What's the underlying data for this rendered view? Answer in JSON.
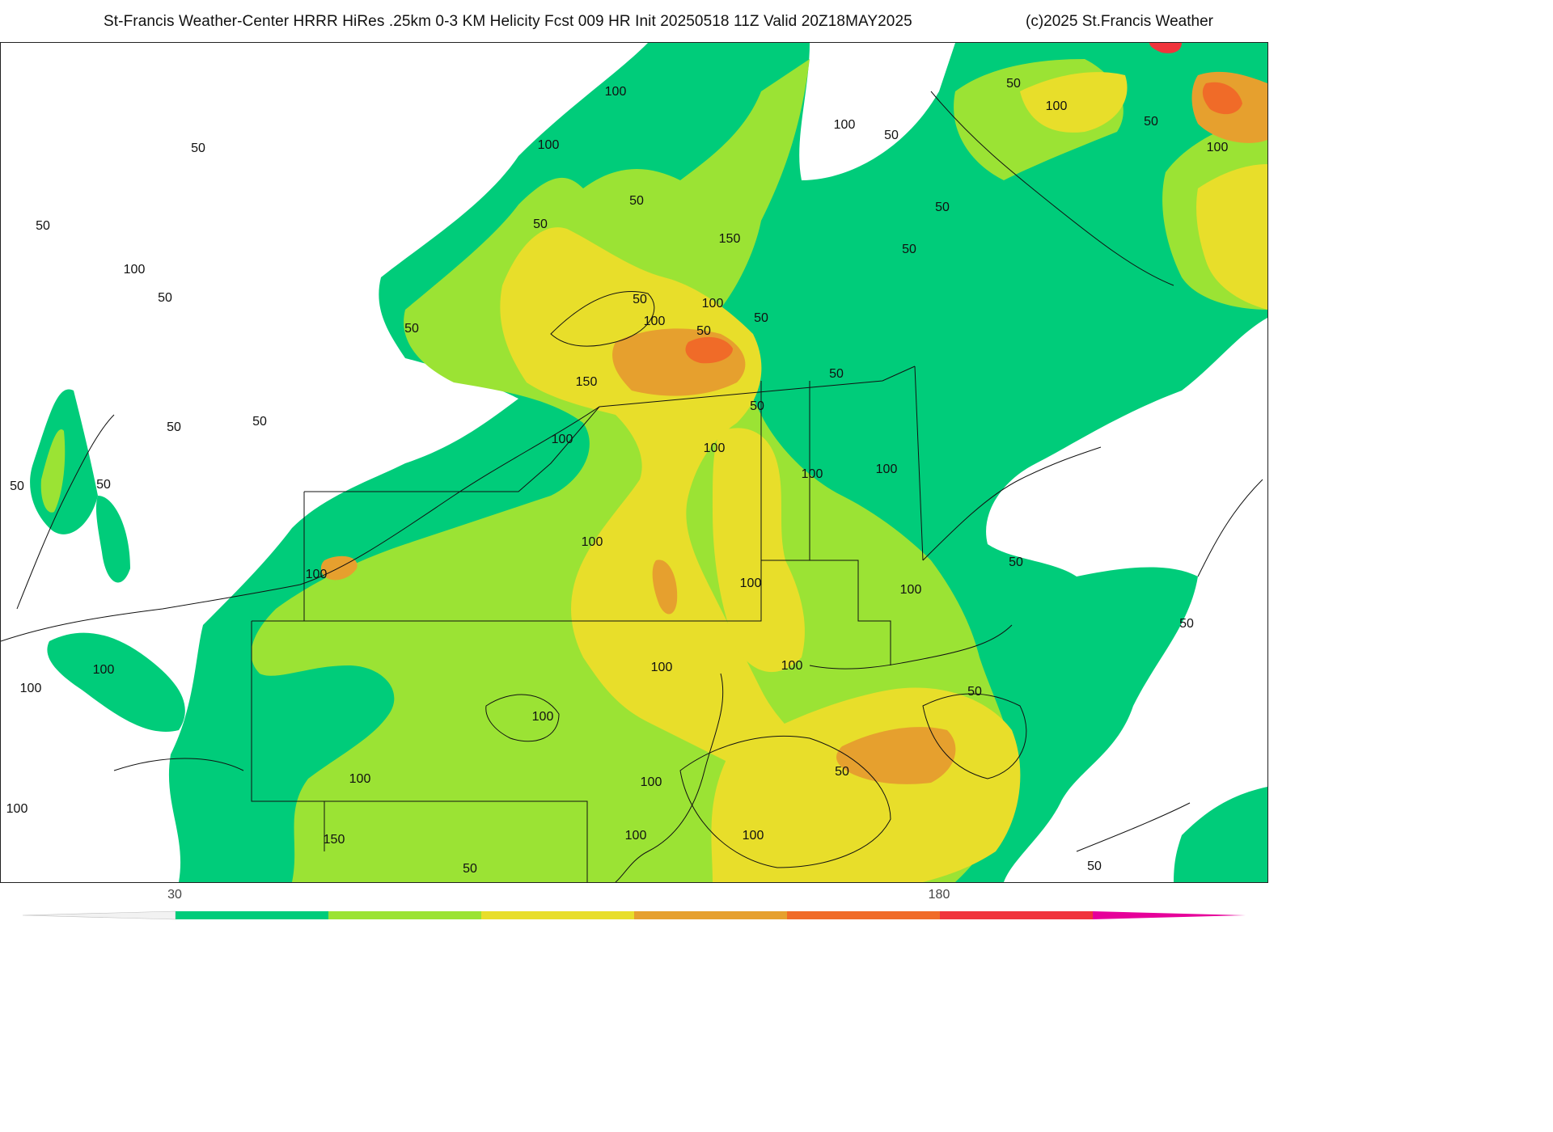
{
  "header": {
    "title": "St-Francis Weather-Center HRRR HiRes .25km 0-3 KM Helicity Fcst 009 HR Init 20250518 11Z  Valid 20Z18MAY2025",
    "copyright": "(c)2025 St.Francis Weather"
  },
  "map": {
    "field": "0-3 KM Helicity",
    "contour_labels": [
      {
        "text": "50"
      },
      {
        "text": "50"
      },
      {
        "text": "100"
      },
      {
        "text": "50"
      },
      {
        "text": "50"
      },
      {
        "text": "50"
      },
      {
        "text": "50"
      },
      {
        "text": "50"
      },
      {
        "text": "50"
      },
      {
        "text": "100"
      },
      {
        "text": "100"
      },
      {
        "text": "100"
      },
      {
        "text": "100"
      },
      {
        "text": "50"
      },
      {
        "text": "100"
      },
      {
        "text": "100"
      },
      {
        "text": "50"
      },
      {
        "text": "150"
      },
      {
        "text": "100"
      },
      {
        "text": "50"
      },
      {
        "text": "100"
      },
      {
        "text": "50"
      },
      {
        "text": "50"
      },
      {
        "text": "150"
      },
      {
        "text": "100"
      },
      {
        "text": "50"
      },
      {
        "text": "50"
      },
      {
        "text": "100"
      },
      {
        "text": "100"
      },
      {
        "text": "100"
      },
      {
        "text": "100"
      },
      {
        "text": "100"
      },
      {
        "text": "100"
      },
      {
        "text": "50"
      },
      {
        "text": "100"
      },
      {
        "text": "100"
      },
      {
        "text": "150"
      },
      {
        "text": "100"
      },
      {
        "text": "100"
      },
      {
        "text": "100"
      },
      {
        "text": "100"
      },
      {
        "text": "50"
      },
      {
        "text": "100"
      },
      {
        "text": "50"
      },
      {
        "text": "50"
      },
      {
        "text": "50"
      },
      {
        "text": "50"
      },
      {
        "text": "100"
      },
      {
        "text": "50"
      },
      {
        "text": "50"
      },
      {
        "text": "50"
      },
      {
        "text": "50"
      },
      {
        "text": "100"
      },
      {
        "text": "50"
      },
      {
        "text": "100"
      }
    ]
  },
  "colorbar": {
    "tick_labels": [
      "30",
      "180"
    ],
    "colors": [
      "#00cc7a",
      "#9be334",
      "#e8de2a",
      "#e6a02e",
      "#f06b28",
      "#f0343c",
      "#e6009a"
    ]
  }
}
